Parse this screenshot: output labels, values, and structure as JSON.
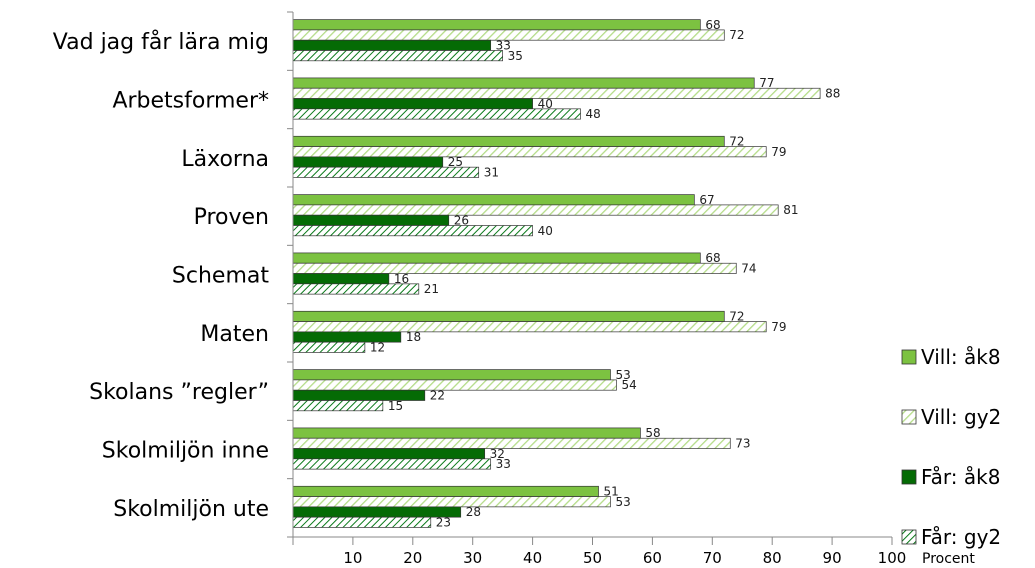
{
  "chart_data": {
    "type": "bar",
    "orientation": "horizontal",
    "categories": [
      "Vad jag får lära mig",
      "Arbetsformer*",
      "Läxorna",
      "Proven",
      "Schemat",
      "Maten",
      "Skolans ”regler”",
      "Skolmiljön inne",
      "Skolmiljön ute"
    ],
    "series": [
      {
        "name": "Vill: åk8",
        "values": [
          68,
          77,
          72,
          67,
          68,
          72,
          53,
          58,
          51
        ],
        "color": "#7cc241",
        "pattern": "solid"
      },
      {
        "name": "Vill: gy2",
        "values": [
          72,
          88,
          79,
          81,
          74,
          79,
          54,
          73,
          53
        ],
        "color": "#c6e8a6",
        "pattern": "hatched"
      },
      {
        "name": "Får: åk8",
        "values": [
          33,
          40,
          25,
          26,
          16,
          18,
          22,
          32,
          28
        ],
        "color": "#056b05",
        "pattern": "solid"
      },
      {
        "name": "Får: gy2",
        "values": [
          35,
          48,
          31,
          40,
          21,
          12,
          15,
          33,
          23
        ],
        "color": "#0a7a1a",
        "pattern": "hatched"
      }
    ],
    "xaxis": {
      "ticks": [
        10,
        20,
        30,
        40,
        50,
        60,
        70,
        80,
        90,
        100
      ],
      "tick_labels": [
        "10",
        "20",
        "30",
        "40",
        "50",
        "60",
        "70",
        "80",
        "90",
        "100"
      ],
      "xlim": [
        0,
        100
      ],
      "unit_label": "Procent"
    },
    "grid": false,
    "legend_position": "right"
  }
}
